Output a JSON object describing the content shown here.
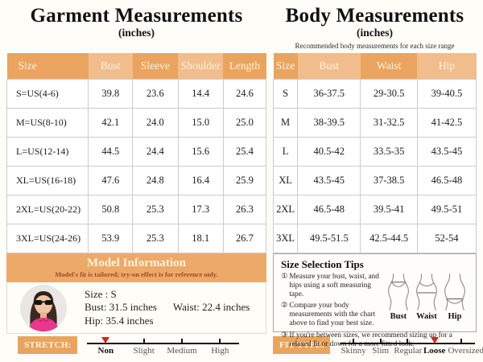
{
  "garment": {
    "title": "Garment Measurements",
    "unit": "(inches)",
    "columns": [
      "Size",
      "Bust",
      "Sleeve",
      "Shoulder",
      "Length"
    ],
    "rows": [
      [
        "S=US(4-6)",
        "39.8",
        "23.6",
        "14.4",
        "24.6"
      ],
      [
        "M=US(8-10)",
        "42.1",
        "24.0",
        "15.0",
        "25.0"
      ],
      [
        "L=US(12-14)",
        "44.5",
        "24.4",
        "15.6",
        "25.4"
      ],
      [
        "XL=US(16-18)",
        "47.6",
        "24.8",
        "16.4",
        "25.9"
      ],
      [
        "2XL=US(20-22)",
        "50.8",
        "25.3",
        "17.3",
        "26.3"
      ],
      [
        "3XL=US(24-26)",
        "53.9",
        "25.3",
        "18.1",
        "26.7"
      ]
    ]
  },
  "body_table": {
    "title": "Body Measurements",
    "unit": "(inches)",
    "subtitle": "Recommended body measurements for each size range",
    "columns": [
      "Size",
      "Bust",
      "Waist",
      "Hip"
    ],
    "rows": [
      [
        "S",
        "36-37.5",
        "29-30.5",
        "39-40.5"
      ],
      [
        "M",
        "38-39.5",
        "31-32.5",
        "41-42.5"
      ],
      [
        "L",
        "40.5-42",
        "33.5-35",
        "43.5-45"
      ],
      [
        "XL",
        "43.5-45",
        "37-38.5",
        "46.5-48"
      ],
      [
        "2XL",
        "46.5-48",
        "39.5-41",
        "49.5-51"
      ],
      [
        "3XL",
        "49.5-51.5",
        "42.5-44.5",
        "52-54"
      ]
    ]
  },
  "model": {
    "banner_title": "Model Information",
    "banner_subtitle": "Model's fit is tailored; try-on effect is for reference only.",
    "size_line": "Size : S",
    "bust": "Bust: 31.5 inches",
    "waist": "Waist: 22.4 inches",
    "hip": "Hip: 35.4 inches"
  },
  "tips": {
    "title": "Size Selection Tips",
    "items": [
      {
        "num": "①",
        "text": "Measure your bust, waist, and hips using a soft measuring tape."
      },
      {
        "num": "②",
        "text": "Compare your body measurements with the chart above to find your best size."
      },
      {
        "num": "③",
        "text": "If you're between sizes, we recommend sizing up for a relaxed fit or down for a more fitted look."
      }
    ],
    "figures": [
      {
        "label": "Bust"
      },
      {
        "label": "Waist"
      },
      {
        "label": "Hip"
      }
    ]
  },
  "stretch": {
    "label": "STRETCH:",
    "options": [
      "Non",
      "Slight",
      "Medium",
      "High"
    ],
    "selected": 0
  },
  "fit_type": {
    "label": "FIT TYPE:",
    "options": [
      "Skinny",
      "Slim",
      "Regular",
      "Loose",
      "Oversized"
    ],
    "selected": 3
  },
  "colors": {
    "header_dark_orange": "#eaa45f",
    "header_light_orange": "#f1bd8d",
    "banner_orange": "#eda968",
    "badge_orange": "#e9a55d",
    "marker_red": "#d3281c",
    "banner_subtitle_red": "#a3492a"
  }
}
